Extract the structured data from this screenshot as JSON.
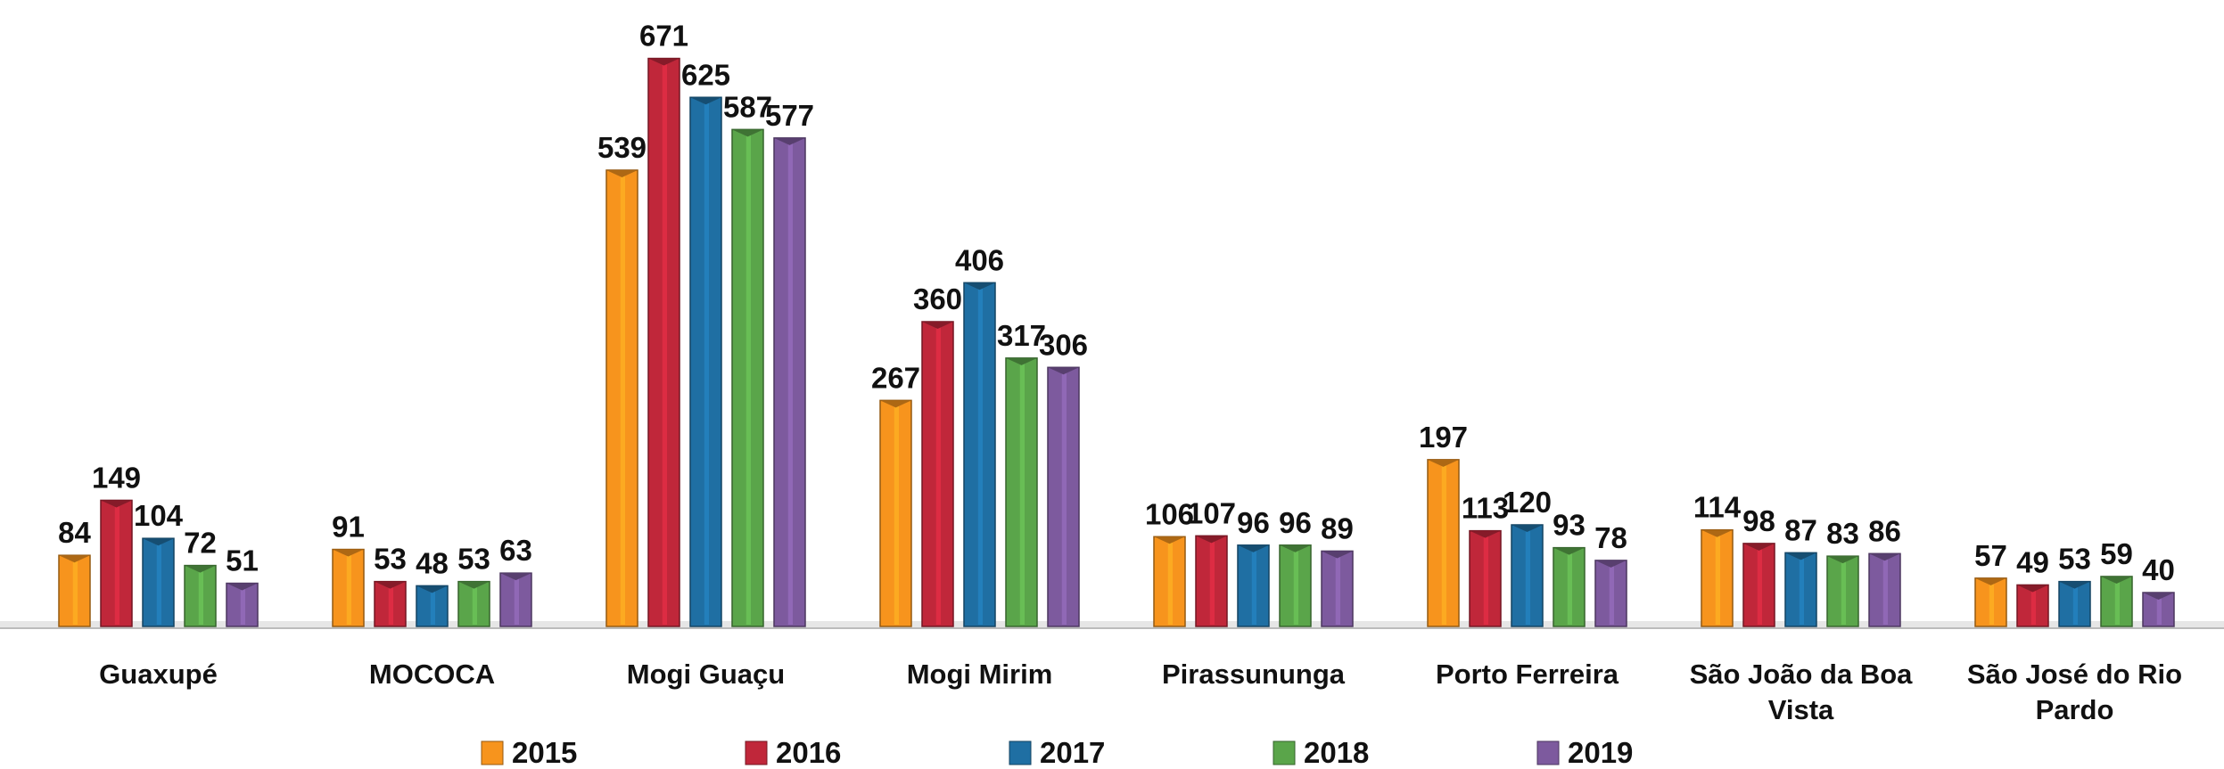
{
  "chart_data": {
    "type": "bar",
    "categories": [
      "Guaxupé",
      "MOCOCA",
      "Mogi Guaçu",
      "Mogi Mirim",
      "Pirassununga",
      "Porto Ferreira",
      "São João da Boa Vista",
      "São José do Rio Pardo"
    ],
    "series": [
      {
        "name": "2015",
        "color": "#f7941d",
        "values": [
          84,
          91,
          539,
          267,
          106,
          197,
          114,
          57
        ]
      },
      {
        "name": "2016",
        "color": "#c0273a",
        "values": [
          149,
          53,
          671,
          360,
          107,
          113,
          98,
          49
        ]
      },
      {
        "name": "2017",
        "color": "#1f6fa3",
        "values": [
          104,
          48,
          625,
          406,
          96,
          120,
          87,
          53
        ]
      },
      {
        "name": "2018",
        "color": "#5aa54a",
        "values": [
          72,
          53,
          587,
          317,
          96,
          93,
          83,
          59
        ]
      },
      {
        "name": "2019",
        "color": "#7d5a9e",
        "values": [
          51,
          63,
          577,
          306,
          89,
          78,
          86,
          40
        ]
      }
    ],
    "ylim": [
      0,
      740
    ],
    "legend": "bottom"
  }
}
